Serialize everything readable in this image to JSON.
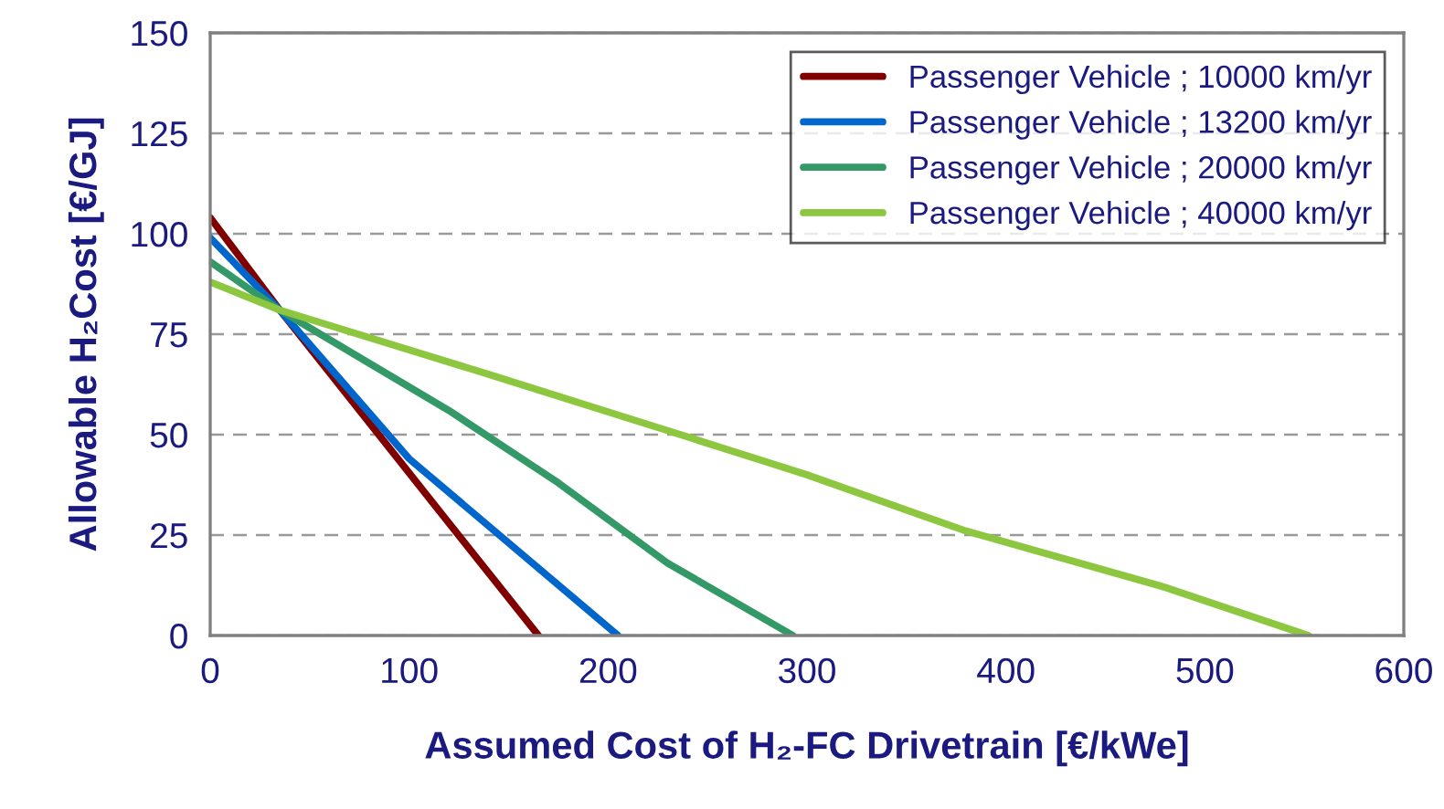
{
  "chart_data": {
    "type": "line",
    "xlabel": "Assumed Cost of H₂-FC Drivetrain [€/kWe]",
    "ylabel": "Allowable H₂Cost [€/GJ]",
    "xlim": [
      0,
      600
    ],
    "xticks": [
      0,
      100,
      200,
      300,
      400,
      500,
      600
    ],
    "ylim": [
      0,
      150
    ],
    "yticks": [
      0,
      25,
      50,
      75,
      100,
      125,
      150
    ],
    "grid": "y",
    "legend": "top right",
    "marker": "none",
    "line_style": "solid",
    "series": [
      {
        "name": "Passenger Vehicle ; 10000 km/yr",
        "color": "#800000",
        "x": [
          0,
          35,
          120,
          165
        ],
        "values": [
          104,
          81,
          28,
          0
        ]
      },
      {
        "name": "Passenger Vehicle ; 13200 km/yr",
        "color": "#0066cc",
        "x": [
          0,
          35,
          100,
          205
        ],
        "values": [
          99,
          81,
          44,
          0
        ]
      },
      {
        "name": "Passenger Vehicle ; 20000 km/yr",
        "color": "#339966",
        "x": [
          0,
          35,
          120,
          175,
          230,
          293
        ],
        "values": [
          93,
          81,
          56,
          38,
          18,
          0
        ]
      },
      {
        "name": "Passenger Vehicle ; 40000 km/yr",
        "color": "#8dc63f",
        "x": [
          0,
          35,
          140,
          230,
          300,
          380,
          480,
          552
        ],
        "values": [
          88,
          81,
          65,
          51,
          40,
          26,
          12,
          0
        ]
      }
    ]
  }
}
